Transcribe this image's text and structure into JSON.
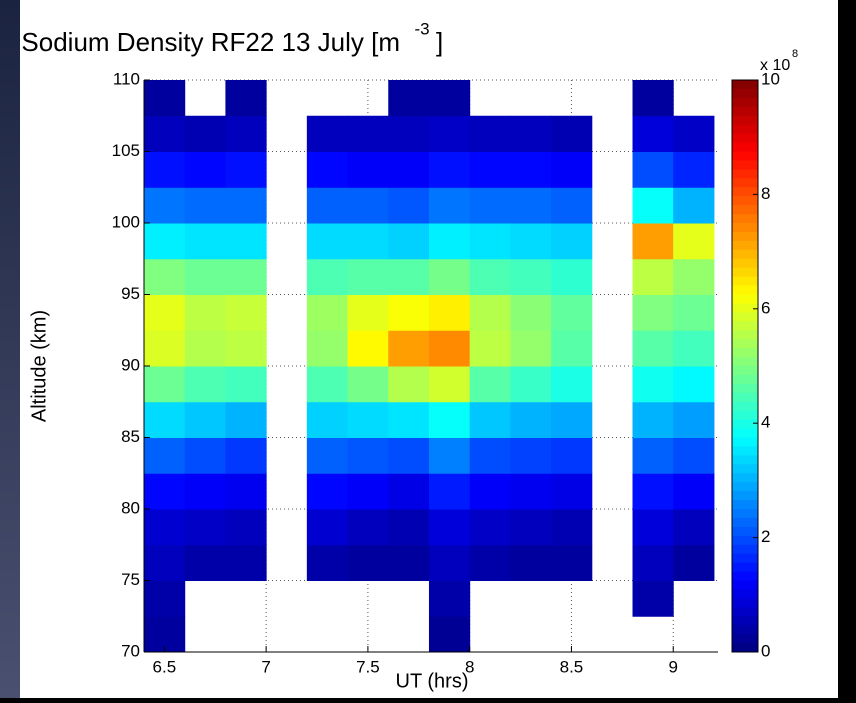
{
  "chart_data": {
    "type": "heatmap",
    "title": "Sodium Density RF22 13 July [m",
    "title_superscript": "-3",
    "title_end": "]",
    "xlabel": "UT (hrs)",
    "ylabel": "Altitude (km)",
    "xlim": [
      6.4,
      9.22
    ],
    "ylim": [
      70,
      110
    ],
    "xticks": [
      6.5,
      7,
      7.5,
      8,
      8.5,
      9
    ],
    "yticks": [
      70,
      75,
      80,
      85,
      90,
      95,
      100,
      105,
      110
    ],
    "grid": true,
    "x_bins": [
      6.4,
      6.6,
      6.8,
      7.0,
      7.2,
      7.4,
      7.6,
      7.8,
      8.0,
      8.2,
      8.4,
      8.6,
      8.8,
      9.0,
      9.2
    ],
    "y_bins": [
      70,
      72.5,
      75,
      77.5,
      80,
      82.5,
      85,
      87.5,
      90,
      92.5,
      95,
      97.5,
      100,
      102.5,
      105,
      107.5,
      110
    ],
    "z": [
      [
        0.3,
        null,
        null,
        null,
        null,
        null,
        null,
        0.2,
        null,
        null,
        null,
        null,
        null,
        null
      ],
      [
        0.4,
        null,
        null,
        null,
        null,
        null,
        null,
        0.4,
        null,
        null,
        null,
        null,
        0.4,
        null
      ],
      [
        0.6,
        0.4,
        0.4,
        null,
        0.4,
        0.3,
        0.3,
        0.6,
        0.4,
        0.3,
        0.3,
        null,
        0.6,
        0.3
      ],
      [
        0.8,
        0.7,
        0.6,
        null,
        0.8,
        0.6,
        0.5,
        0.9,
        0.7,
        0.6,
        0.5,
        null,
        0.9,
        0.6
      ],
      [
        1.3,
        1.2,
        1.1,
        null,
        1.3,
        1.2,
        1.0,
        1.5,
        1.2,
        1.1,
        1.0,
        null,
        1.4,
        1.2
      ],
      [
        2.2,
        2.0,
        1.8,
        null,
        2.2,
        2.1,
        2.0,
        2.5,
        2.0,
        1.9,
        1.8,
        null,
        2.2,
        2.0
      ],
      [
        3.4,
        3.2,
        3.0,
        null,
        3.3,
        3.4,
        3.5,
        3.8,
        3.2,
        3.0,
        2.9,
        null,
        3.0,
        2.8
      ],
      [
        4.8,
        4.5,
        4.4,
        null,
        4.5,
        4.9,
        5.5,
        5.8,
        4.6,
        4.3,
        4.0,
        null,
        3.9,
        3.7
      ],
      [
        5.9,
        5.5,
        5.6,
        null,
        5.2,
        6.3,
        7.2,
        7.4,
        5.6,
        5.2,
        4.6,
        null,
        4.6,
        4.4
      ],
      [
        6.0,
        5.6,
        5.7,
        null,
        5.3,
        6.0,
        6.2,
        6.4,
        5.5,
        5.1,
        4.7,
        null,
        5.0,
        4.8
      ],
      [
        5.0,
        4.8,
        4.8,
        null,
        4.5,
        4.6,
        4.6,
        4.9,
        4.5,
        4.4,
        4.2,
        null,
        5.6,
        5.2
      ],
      [
        3.6,
        3.5,
        3.5,
        null,
        3.4,
        3.4,
        3.3,
        3.6,
        3.5,
        3.4,
        3.3,
        null,
        7.2,
        6.0
      ],
      [
        2.4,
        2.3,
        2.3,
        null,
        2.2,
        2.2,
        2.1,
        2.4,
        2.3,
        2.3,
        2.2,
        null,
        3.8,
        3.0
      ],
      [
        1.4,
        1.3,
        1.4,
        null,
        1.3,
        1.2,
        1.2,
        1.4,
        1.3,
        1.3,
        1.2,
        null,
        2.0,
        1.6
      ],
      [
        0.6,
        0.5,
        0.6,
        null,
        0.6,
        0.6,
        0.6,
        0.7,
        0.6,
        0.6,
        0.5,
        null,
        0.9,
        0.7
      ],
      [
        0.3,
        null,
        0.3,
        null,
        null,
        null,
        0.3,
        0.3,
        null,
        null,
        null,
        null,
        0.3,
        null
      ]
    ],
    "colorbar": {
      "colormap": "jet",
      "clim": [
        0,
        10
      ],
      "ticks": [
        0,
        2,
        4,
        6,
        8,
        10
      ],
      "multiplier_label": "x 10",
      "multiplier_exponent": "8"
    }
  }
}
